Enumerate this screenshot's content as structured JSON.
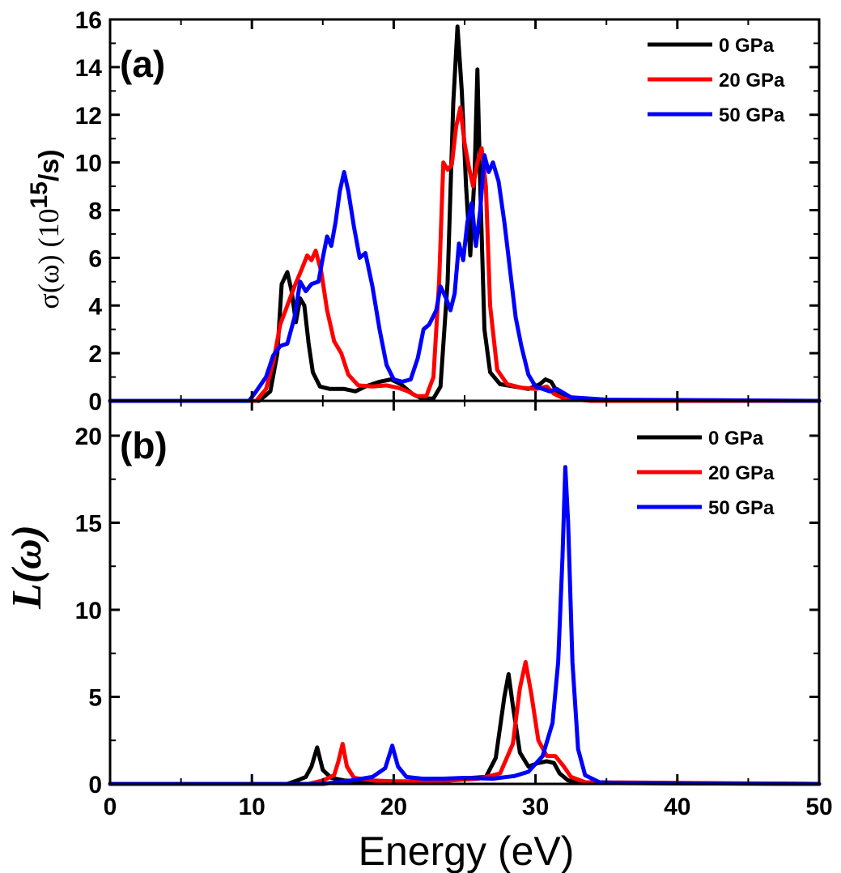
{
  "chart_data": [
    {
      "type": "line",
      "panel_label": "(a)",
      "ylabel": {
        "prefix": "σ(ω) (10",
        "exponent": "15",
        "unit": "/s)"
      },
      "xlim": [
        0,
        50
      ],
      "ylim": [
        0,
        16
      ],
      "yticks": [
        "0",
        "2",
        "4",
        "6",
        "8",
        "10",
        "12",
        "14",
        "16"
      ],
      "legend_position": "top-right",
      "series": [
        {
          "name": "0 GPa",
          "color": "#000000",
          "points": [
            [
              0,
              0
            ],
            [
              10.5,
              0
            ],
            [
              11.3,
              0.4
            ],
            [
              11.8,
              2.0
            ],
            [
              12.1,
              4.9
            ],
            [
              12.5,
              5.4
            ],
            [
              12.8,
              4.6
            ],
            [
              13.1,
              3.3
            ],
            [
              13.4,
              4.3
            ],
            [
              13.7,
              4.0
            ],
            [
              14.0,
              2.4
            ],
            [
              14.3,
              1.2
            ],
            [
              14.8,
              0.6
            ],
            [
              15.5,
              0.5
            ],
            [
              16.5,
              0.5
            ],
            [
              17.3,
              0.4
            ],
            [
              18.0,
              0.6
            ],
            [
              19.0,
              0.8
            ],
            [
              19.8,
              0.9
            ],
            [
              20.5,
              0.7
            ],
            [
              21.3,
              0.3
            ],
            [
              22.0,
              0.1
            ],
            [
              22.8,
              0.1
            ],
            [
              23.3,
              0.6
            ],
            [
              23.8,
              5.0
            ],
            [
              24.2,
              12.5
            ],
            [
              24.5,
              15.7
            ],
            [
              24.8,
              13.0
            ],
            [
              25.1,
              9.0
            ],
            [
              25.4,
              6.1
            ],
            [
              25.7,
              9.5
            ],
            [
              25.9,
              13.9
            ],
            [
              26.1,
              9.0
            ],
            [
              26.4,
              3.0
            ],
            [
              26.8,
              1.2
            ],
            [
              27.5,
              0.7
            ],
            [
              28.5,
              0.6
            ],
            [
              29.5,
              0.5
            ],
            [
              30.3,
              0.7
            ],
            [
              30.7,
              0.9
            ],
            [
              31.1,
              0.8
            ],
            [
              31.5,
              0.4
            ],
            [
              32.5,
              0.1
            ],
            [
              34,
              0
            ],
            [
              50,
              0
            ]
          ]
        },
        {
          "name": "20 GPa",
          "color": "#ff0000",
          "points": [
            [
              0,
              0
            ],
            [
              10.3,
              0
            ],
            [
              11.0,
              0.5
            ],
            [
              11.5,
              1.6
            ],
            [
              12.0,
              3.2
            ],
            [
              12.5,
              4.0
            ],
            [
              13.0,
              4.8
            ],
            [
              13.5,
              5.5
            ],
            [
              13.9,
              6.1
            ],
            [
              14.2,
              5.9
            ],
            [
              14.5,
              6.3
            ],
            [
              14.9,
              5.4
            ],
            [
              15.3,
              3.8
            ],
            [
              15.8,
              2.5
            ],
            [
              16.3,
              2.0
            ],
            [
              16.8,
              1.1
            ],
            [
              17.5,
              0.65
            ],
            [
              18.5,
              0.6
            ],
            [
              19.5,
              0.65
            ],
            [
              20.3,
              0.55
            ],
            [
              21.0,
              0.4
            ],
            [
              21.6,
              0.2
            ],
            [
              22.3,
              0.2
            ],
            [
              22.8,
              1.0
            ],
            [
              23.2,
              5.0
            ],
            [
              23.5,
              10.0
            ],
            [
              23.8,
              9.7
            ],
            [
              24.1,
              9.9
            ],
            [
              24.4,
              11.5
            ],
            [
              24.7,
              12.3
            ],
            [
              25.0,
              10.8
            ],
            [
              25.3,
              9.8
            ],
            [
              25.6,
              9.0
            ],
            [
              25.9,
              10.0
            ],
            [
              26.2,
              10.6
            ],
            [
              26.5,
              9.0
            ],
            [
              26.8,
              4.0
            ],
            [
              27.3,
              1.3
            ],
            [
              28.0,
              0.7
            ],
            [
              29.0,
              0.55
            ],
            [
              30.0,
              0.5
            ],
            [
              30.8,
              0.6
            ],
            [
              31.3,
              0.3
            ],
            [
              32.0,
              0.1
            ],
            [
              34,
              0
            ],
            [
              50,
              0
            ]
          ]
        },
        {
          "name": "50 GPa",
          "color": "#0000ff",
          "points": [
            [
              0,
              0
            ],
            [
              9.8,
              0
            ],
            [
              10.3,
              0.4
            ],
            [
              11.0,
              1.0
            ],
            [
              11.5,
              1.9
            ],
            [
              12.0,
              2.3
            ],
            [
              12.5,
              2.4
            ],
            [
              13.0,
              3.5
            ],
            [
              13.4,
              5.0
            ],
            [
              13.8,
              4.6
            ],
            [
              14.2,
              4.9
            ],
            [
              14.7,
              5.0
            ],
            [
              15.0,
              6.0
            ],
            [
              15.3,
              6.9
            ],
            [
              15.6,
              6.5
            ],
            [
              15.9,
              7.5
            ],
            [
              16.2,
              8.8
            ],
            [
              16.5,
              9.6
            ],
            [
              16.8,
              8.8
            ],
            [
              17.2,
              7.3
            ],
            [
              17.6,
              6.0
            ],
            [
              18.0,
              6.2
            ],
            [
              18.5,
              4.8
            ],
            [
              19.0,
              3.0
            ],
            [
              19.5,
              1.5
            ],
            [
              20.0,
              0.9
            ],
            [
              20.6,
              0.8
            ],
            [
              21.2,
              0.9
            ],
            [
              21.7,
              1.8
            ],
            [
              22.1,
              3.0
            ],
            [
              22.5,
              3.2
            ],
            [
              23.0,
              3.8
            ],
            [
              23.3,
              4.8
            ],
            [
              23.7,
              4.3
            ],
            [
              24.0,
              3.8
            ],
            [
              24.3,
              4.5
            ],
            [
              24.6,
              6.6
            ],
            [
              24.9,
              5.9
            ],
            [
              25.2,
              7.5
            ],
            [
              25.5,
              8.3
            ],
            [
              25.8,
              6.5
            ],
            [
              26.1,
              8.0
            ],
            [
              26.4,
              10.3
            ],
            [
              26.7,
              9.6
            ],
            [
              27.0,
              10.0
            ],
            [
              27.4,
              9.2
            ],
            [
              27.8,
              7.5
            ],
            [
              28.2,
              5.5
            ],
            [
              28.6,
              3.5
            ],
            [
              29.0,
              2.3
            ],
            [
              29.5,
              1.1
            ],
            [
              30.0,
              0.6
            ],
            [
              31.0,
              0.4
            ],
            [
              31.5,
              0.5
            ],
            [
              32.5,
              0.15
            ],
            [
              35,
              0.05
            ],
            [
              50,
              0
            ]
          ]
        }
      ]
    },
    {
      "type": "line",
      "panel_label": "(b)",
      "ylabel": "L(ω)",
      "xlabel": "Energy (eV)",
      "xlim": [
        0,
        50
      ],
      "ylim": [
        0,
        22
      ],
      "xticks": [
        "0",
        "10",
        "20",
        "30",
        "40",
        "50"
      ],
      "yticks": [
        "0",
        "5",
        "10",
        "15",
        "20"
      ],
      "legend_position": "top-right",
      "series": [
        {
          "name": "0 GPa",
          "color": "#000000",
          "points": [
            [
              0,
              0
            ],
            [
              12.5,
              0
            ],
            [
              13.2,
              0.2
            ],
            [
              13.8,
              0.4
            ],
            [
              14.2,
              1.0
            ],
            [
              14.6,
              2.1
            ],
            [
              15.0,
              0.8
            ],
            [
              15.6,
              0.35
            ],
            [
              16.5,
              0.2
            ],
            [
              18,
              0.15
            ],
            [
              20,
              0.1
            ],
            [
              22,
              0.1
            ],
            [
              24,
              0.2
            ],
            [
              25.5,
              0.35
            ],
            [
              26.5,
              0.4
            ],
            [
              27.2,
              1.5
            ],
            [
              27.8,
              5.0
            ],
            [
              28.1,
              6.3
            ],
            [
              28.4,
              4.5
            ],
            [
              28.9,
              1.8
            ],
            [
              29.5,
              1.0
            ],
            [
              30.2,
              1.2
            ],
            [
              30.8,
              1.3
            ],
            [
              31.3,
              1.2
            ],
            [
              31.7,
              0.6
            ],
            [
              32.3,
              0.2
            ],
            [
              33.5,
              0.05
            ],
            [
              50,
              0
            ]
          ]
        },
        {
          "name": "20 GPa",
          "color": "#ff0000",
          "points": [
            [
              0,
              0
            ],
            [
              14.0,
              0
            ],
            [
              15.0,
              0.2
            ],
            [
              15.8,
              0.5
            ],
            [
              16.1,
              1.3
            ],
            [
              16.4,
              2.3
            ],
            [
              16.7,
              1.0
            ],
            [
              17.2,
              0.35
            ],
            [
              18.5,
              0.2
            ],
            [
              20,
              0.15
            ],
            [
              22,
              0.15
            ],
            [
              24,
              0.2
            ],
            [
              26,
              0.3
            ],
            [
              27.5,
              0.6
            ],
            [
              28.4,
              2.3
            ],
            [
              28.9,
              5.5
            ],
            [
              29.3,
              7.0
            ],
            [
              29.7,
              5.2
            ],
            [
              30.2,
              2.5
            ],
            [
              30.8,
              1.6
            ],
            [
              31.4,
              1.6
            ],
            [
              32.0,
              1.0
            ],
            [
              32.5,
              0.4
            ],
            [
              33.5,
              0.1
            ],
            [
              50,
              0
            ]
          ]
        },
        {
          "name": "50 GPa",
          "color": "#0000ff",
          "points": [
            [
              0,
              0
            ],
            [
              15.0,
              0
            ],
            [
              17.0,
              0.2
            ],
            [
              18.5,
              0.4
            ],
            [
              19.4,
              0.9
            ],
            [
              19.9,
              2.2
            ],
            [
              20.3,
              1.0
            ],
            [
              20.9,
              0.4
            ],
            [
              22,
              0.3
            ],
            [
              23.5,
              0.3
            ],
            [
              25,
              0.35
            ],
            [
              27,
              0.3
            ],
            [
              28.5,
              0.45
            ],
            [
              29.5,
              0.7
            ],
            [
              30.5,
              1.6
            ],
            [
              31.2,
              3.5
            ],
            [
              31.6,
              7.0
            ],
            [
              31.9,
              13.0
            ],
            [
              32.1,
              18.2
            ],
            [
              32.3,
              15.0
            ],
            [
              32.6,
              7.0
            ],
            [
              33.0,
              2.0
            ],
            [
              33.5,
              0.5
            ],
            [
              34.5,
              0.1
            ],
            [
              36,
              0.05
            ],
            [
              50,
              0
            ]
          ]
        }
      ]
    }
  ]
}
